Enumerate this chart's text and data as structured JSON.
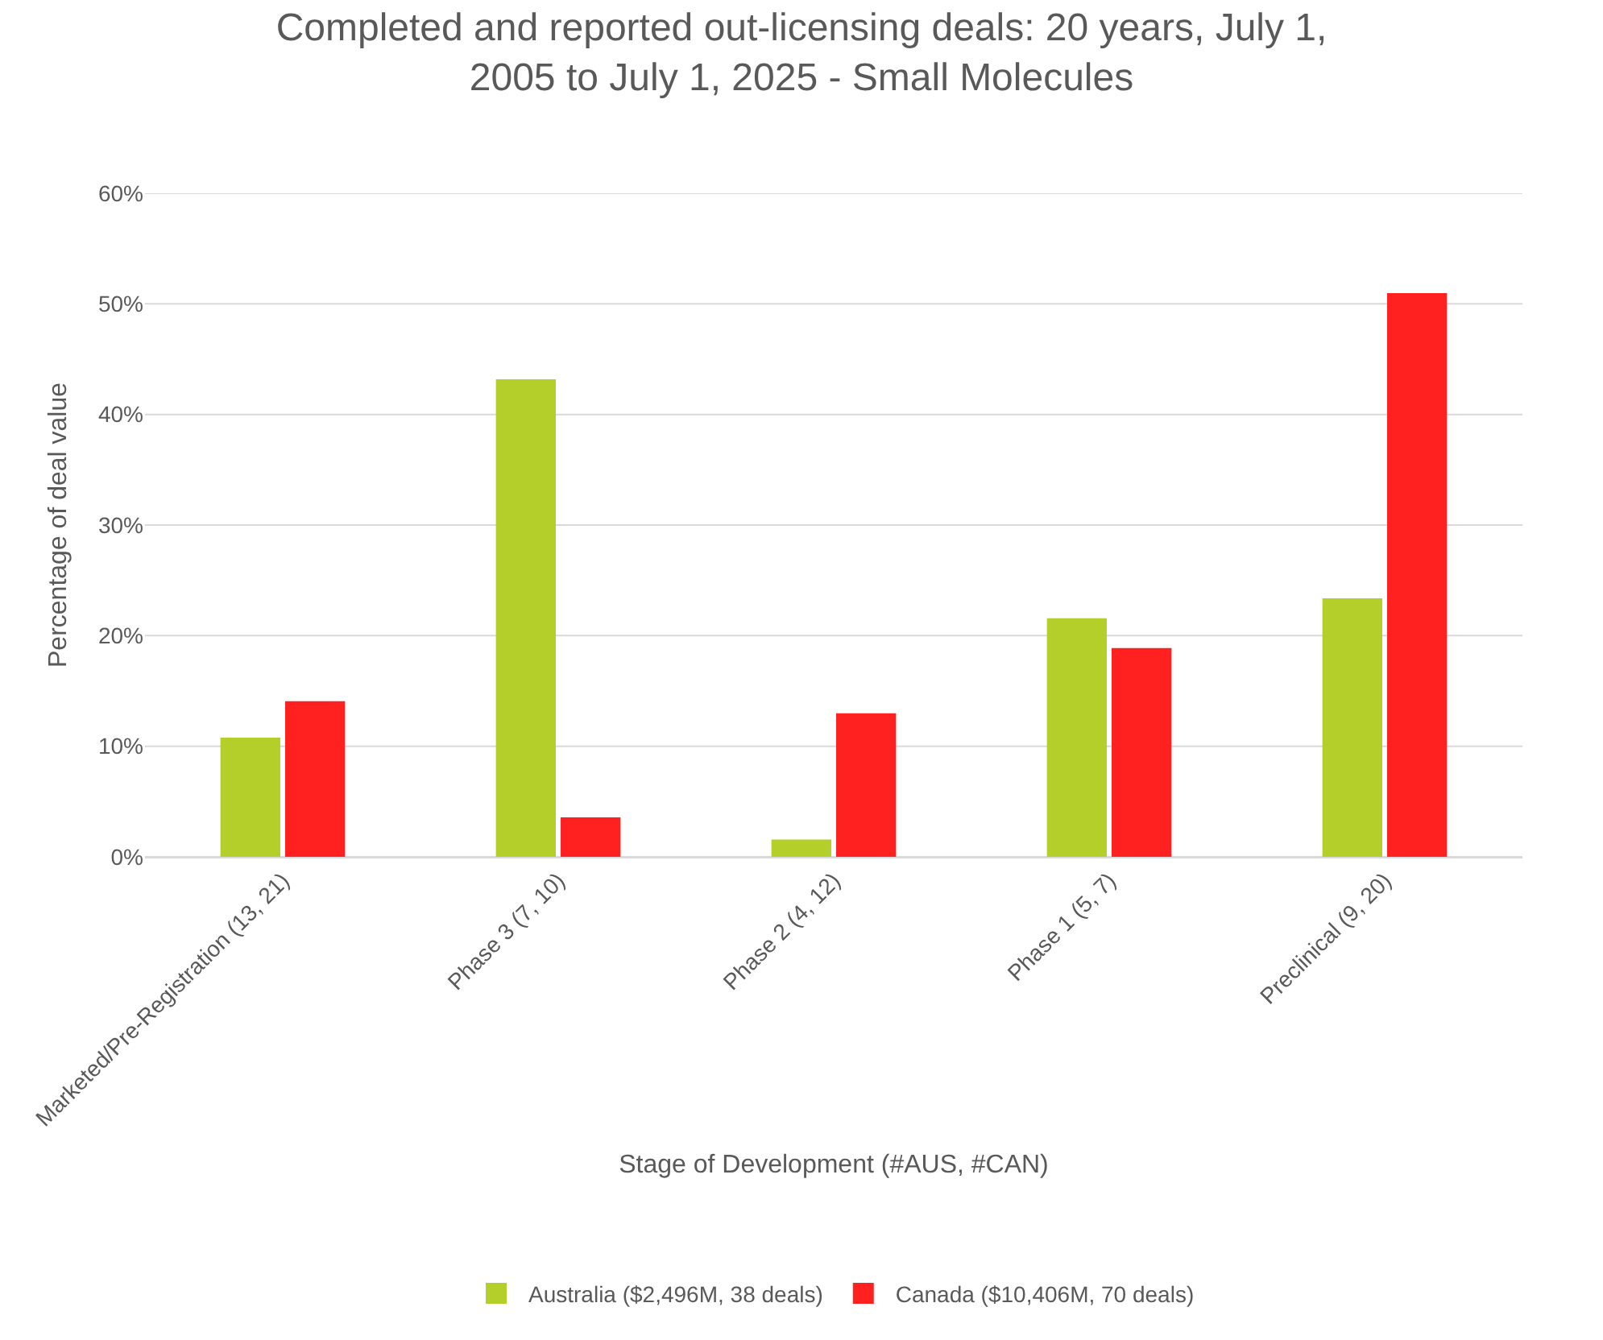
{
  "chart_data": {
    "type": "bar",
    "title": "Completed and reported out-licensing deals: 20 years, July 1, 2005 to July 1, 2025 - Small Molecules",
    "xlabel": "Stage of Development (#AUS, #CAN)",
    "ylabel": "Percentage of deal value",
    "categories": [
      "Marketed/Pre-Registration (13, 21)",
      "Phase 3 (7, 10)",
      "Phase 2 (4, 12)",
      "Phase 1 (5, 7)",
      "Preclinical (9, 20)"
    ],
    "series": [
      {
        "name": "Australia ($2,496M, 38 deals)",
        "color": "#b5cf2a",
        "values": [
          10.7,
          43.1,
          1.5,
          21.5,
          23.3
        ]
      },
      {
        "name": "Canada ($10,406M, 70 deals)",
        "color": "#ff2020",
        "values": [
          14.0,
          3.5,
          12.9,
          18.8,
          50.9
        ]
      }
    ],
    "ylim": [
      0,
      60
    ],
    "yticks": [
      {
        "value": 0,
        "label": "0%"
      },
      {
        "value": 10,
        "label": "10%"
      },
      {
        "value": 20,
        "label": "20%"
      },
      {
        "value": 30,
        "label": "30%"
      },
      {
        "value": 40,
        "label": "40%"
      },
      {
        "value": 50,
        "label": "50%"
      },
      {
        "value": 60,
        "label": "60%"
      }
    ],
    "grid": "y",
    "legend": "bottom"
  }
}
